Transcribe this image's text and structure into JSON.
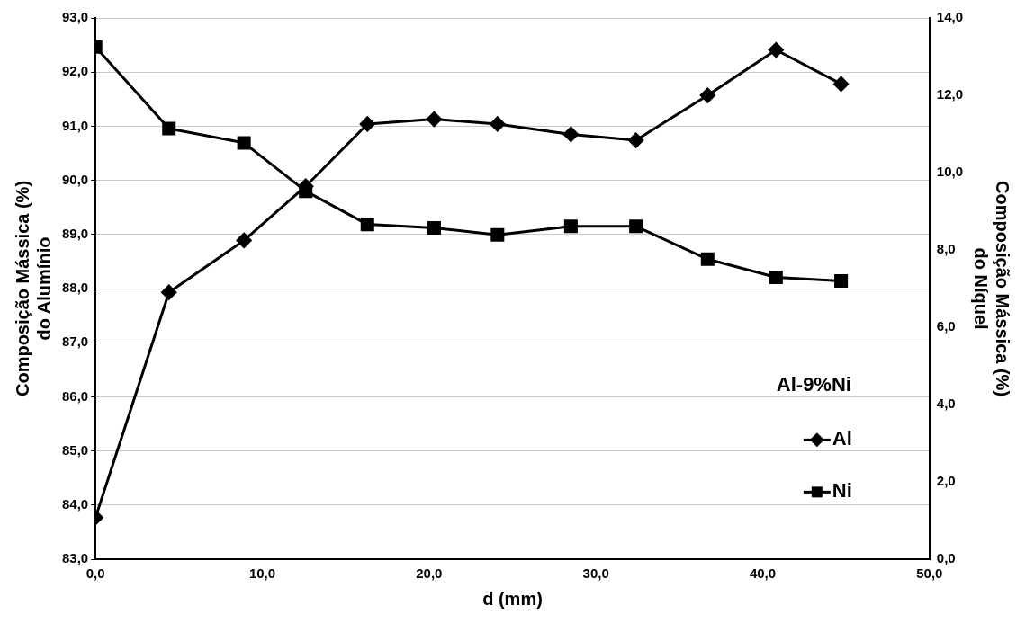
{
  "chart_data": {
    "type": "line",
    "xlabel": "d (mm)",
    "ylabel": "Composição Mássica (%)\ndo Alumínio",
    "y2label": "Composição Mássica (%)\ndo Níquel",
    "legend_title": "Al-9%Ni",
    "legend": "right",
    "grid": "y",
    "line_style": "solid",
    "xlim": [
      0,
      50
    ],
    "xticks": [
      {
        "value": 0,
        "label": "0,0"
      },
      {
        "value": 10,
        "label": "10,0"
      },
      {
        "value": 20,
        "label": "20,0"
      },
      {
        "value": 30,
        "label": "30,0"
      },
      {
        "value": 40,
        "label": "40,0"
      },
      {
        "value": 50,
        "label": "50,0"
      }
    ],
    "ylim": [
      83,
      93
    ],
    "yticks": [
      {
        "value": 83,
        "label": "83,0"
      },
      {
        "value": 84,
        "label": "84,0"
      },
      {
        "value": 85,
        "label": "85,0"
      },
      {
        "value": 86,
        "label": "86,0"
      },
      {
        "value": 87,
        "label": "87,0"
      },
      {
        "value": 88,
        "label": "88,0"
      },
      {
        "value": 89,
        "label": "89,0"
      },
      {
        "value": 90,
        "label": "90,0"
      },
      {
        "value": 91,
        "label": "91,0"
      },
      {
        "value": 92,
        "label": "92,0"
      },
      {
        "value": 93,
        "label": "93,0"
      }
    ],
    "y2lim": [
      0,
      14
    ],
    "y2ticks": [
      {
        "value": 0,
        "label": "0,0"
      },
      {
        "value": 2,
        "label": "2,0"
      },
      {
        "value": 4,
        "label": "4,0"
      },
      {
        "value": 6,
        "label": "6,0"
      },
      {
        "value": 8,
        "label": "8,0"
      },
      {
        "value": 10,
        "label": "10,0"
      },
      {
        "value": 12,
        "label": "12,0"
      },
      {
        "value": 14,
        "label": "14,0"
      }
    ],
    "x": [
      0,
      4.4,
      8.9,
      12.6,
      16.3,
      20.3,
      24.1,
      28.5,
      32.4,
      36.7,
      40.8,
      44.7
    ],
    "series": [
      {
        "name": "Al",
        "color": "#000000",
        "marker": "diamond",
        "values": [
          83.77,
          87.93,
          88.89,
          89.89,
          91.04,
          91.13,
          91.04,
          90.85,
          90.74,
          91.57,
          92.41,
          91.78
        ]
      },
      {
        "name": "Ni",
        "color": "#000000",
        "marker": "square",
        "axis": "y2",
        "values": [
          13.25,
          11.14,
          10.77,
          9.52,
          8.66,
          8.57,
          8.39,
          8.61,
          8.61,
          7.76,
          7.29,
          7.2
        ]
      }
    ]
  }
}
